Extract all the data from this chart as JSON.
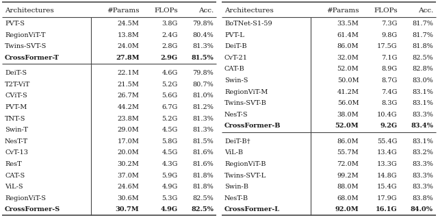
{
  "left_table": {
    "header": [
      "Architectures",
      "#Params",
      "FLOPs",
      "Acc."
    ],
    "groups": [
      {
        "rows": [
          [
            "PVT-S",
            "24.5M",
            "3.8G",
            "79.8%"
          ],
          [
            "RegionViT-T",
            "13.8M",
            "2.4G",
            "80.4%"
          ],
          [
            "Twins-SVT-S",
            "24.0M",
            "2.8G",
            "81.3%"
          ],
          [
            "CrossFormer-T",
            "27.8M",
            "2.9G",
            "81.5%"
          ]
        ],
        "bold_last": true,
        "bold_last_acc_only": false
      },
      {
        "rows": [
          [
            "DeiT-S",
            "22.1M",
            "4.6G",
            "79.8%"
          ],
          [
            "T2T-ViT",
            "21.5M",
            "5.2G",
            "80.7%"
          ],
          [
            "CViT-S",
            "26.7M",
            "5.6G",
            "81.0%"
          ],
          [
            "PVT-M",
            "44.2M",
            "6.7G",
            "81.2%"
          ],
          [
            "TNT-S",
            "23.8M",
            "5.2G",
            "81.3%"
          ],
          [
            "Swin-T",
            "29.0M",
            "4.5G",
            "81.3%"
          ],
          [
            "NesT-T",
            "17.0M",
            "5.8G",
            "81.5%"
          ],
          [
            "CvT-13",
            "20.0M",
            "4.5G",
            "81.6%"
          ],
          [
            "ResT",
            "30.2M",
            "4.3G",
            "81.6%"
          ],
          [
            "CAT-S",
            "37.0M",
            "5.9G",
            "81.8%"
          ],
          [
            "ViL-S",
            "24.6M",
            "4.9G",
            "81.8%"
          ],
          [
            "RegionViT-S",
            "30.6M",
            "5.3G",
            "82.5%"
          ],
          [
            "CrossFormer-S",
            "30.7M",
            "4.9G",
            "82.5%"
          ]
        ],
        "bold_last": true,
        "bold_last_acc_only": false
      }
    ]
  },
  "right_table": {
    "header": [
      "Architectures",
      "#Params",
      "FLOPs",
      "Acc."
    ],
    "groups": [
      {
        "rows": [
          [
            "BoTNet-S1-59",
            "33.5M",
            "7.3G",
            "81.7%"
          ],
          [
            "PVT-L",
            "61.4M",
            "9.8G",
            "81.7%"
          ],
          [
            "DeiT-B",
            "86.0M",
            "17.5G",
            "81.8%"
          ],
          [
            "CvT-21",
            "32.0M",
            "7.1G",
            "82.5%"
          ],
          [
            "CAT-B",
            "52.0M",
            "8.9G",
            "82.8%"
          ],
          [
            "Swin-S",
            "50.0M",
            "8.7G",
            "83.0%"
          ],
          [
            "RegionViT-M",
            "41.2M",
            "7.4G",
            "83.1%"
          ],
          [
            "Twins-SVT-B",
            "56.0M",
            "8.3G",
            "83.1%"
          ],
          [
            "NesT-S",
            "38.0M",
            "10.4G",
            "83.3%"
          ],
          [
            "CrossFormer-B",
            "52.0M",
            "9.2G",
            "83.4%"
          ]
        ],
        "bold_last": true,
        "bold_last_acc_only": false
      },
      {
        "rows": [
          [
            "DeiT-B†",
            "86.0M",
            "55.4G",
            "83.1%"
          ],
          [
            "ViL-B",
            "55.7M",
            "13.4G",
            "83.2%"
          ],
          [
            "RegionViT-B",
            "72.0M",
            "13.3G",
            "83.3%"
          ],
          [
            "Twins-SVT-L",
            "99.2M",
            "14.8G",
            "83.3%"
          ],
          [
            "Swin-B",
            "88.0M",
            "15.4G",
            "83.3%"
          ],
          [
            "NesT-B",
            "68.0M",
            "17.9G",
            "83.8%"
          ],
          [
            "CrossFormer-L",
            "92.0M",
            "16.1G",
            "84.0%"
          ]
        ],
        "bold_last": true,
        "bold_last_acc_only": false
      }
    ]
  },
  "text_color": "#1a1a1a",
  "header_fontsize": 7.5,
  "row_fontsize": 7.0,
  "line_color": "#444444",
  "line_lw_thick": 1.2,
  "line_lw_thin": 0.8
}
